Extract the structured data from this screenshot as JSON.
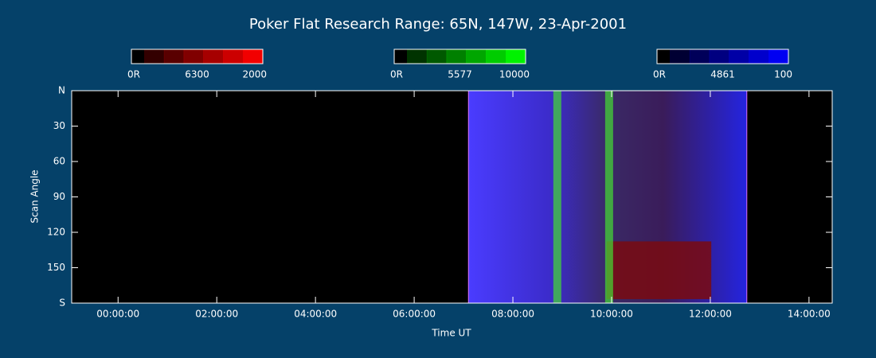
{
  "chart_data": {
    "type": "keogram",
    "title": "Poker Flat Research Range: 65N, 147W, 23-Apr-2001",
    "xlabel": "Time UT",
    "ylabel": "Scan Angle",
    "xlim": [
      -0.94,
      14.47
    ],
    "xticks": [
      {
        "value": 0,
        "label": "00:00:00"
      },
      {
        "value": 2,
        "label": "02:00:00"
      },
      {
        "value": 4,
        "label": "04:00:00"
      },
      {
        "value": 6,
        "label": "06:00:00"
      },
      {
        "value": 8,
        "label": "08:00:00"
      },
      {
        "value": 10,
        "label": "10:00:00"
      },
      {
        "value": 12,
        "label": "12:00:00"
      },
      {
        "value": 14,
        "label": "14:00:00"
      }
    ],
    "ylim": [
      0,
      180
    ],
    "yticks": [
      {
        "value": 0,
        "label": "N"
      },
      30,
      60,
      90,
      120,
      150,
      {
        "value": 180,
        "label": "S"
      }
    ],
    "colorbars": [
      {
        "min_label": "0R",
        "name": "6300",
        "max_label": "2000",
        "color": "#ff0000"
      },
      {
        "min_label": "0R",
        "name": "5577",
        "max_label": "10000",
        "color": "#00ff00"
      },
      {
        "min_label": "0R",
        "name": "4861",
        "max_label": "100",
        "color": "#0000ff"
      }
    ],
    "coverage": [
      7.1,
      12.74
    ],
    "green_arcs": [
      8.9,
      9.95
    ],
    "red_patch": {
      "x": [
        9.9,
        12.02
      ],
      "y": [
        127.7,
        176.6
      ]
    }
  }
}
